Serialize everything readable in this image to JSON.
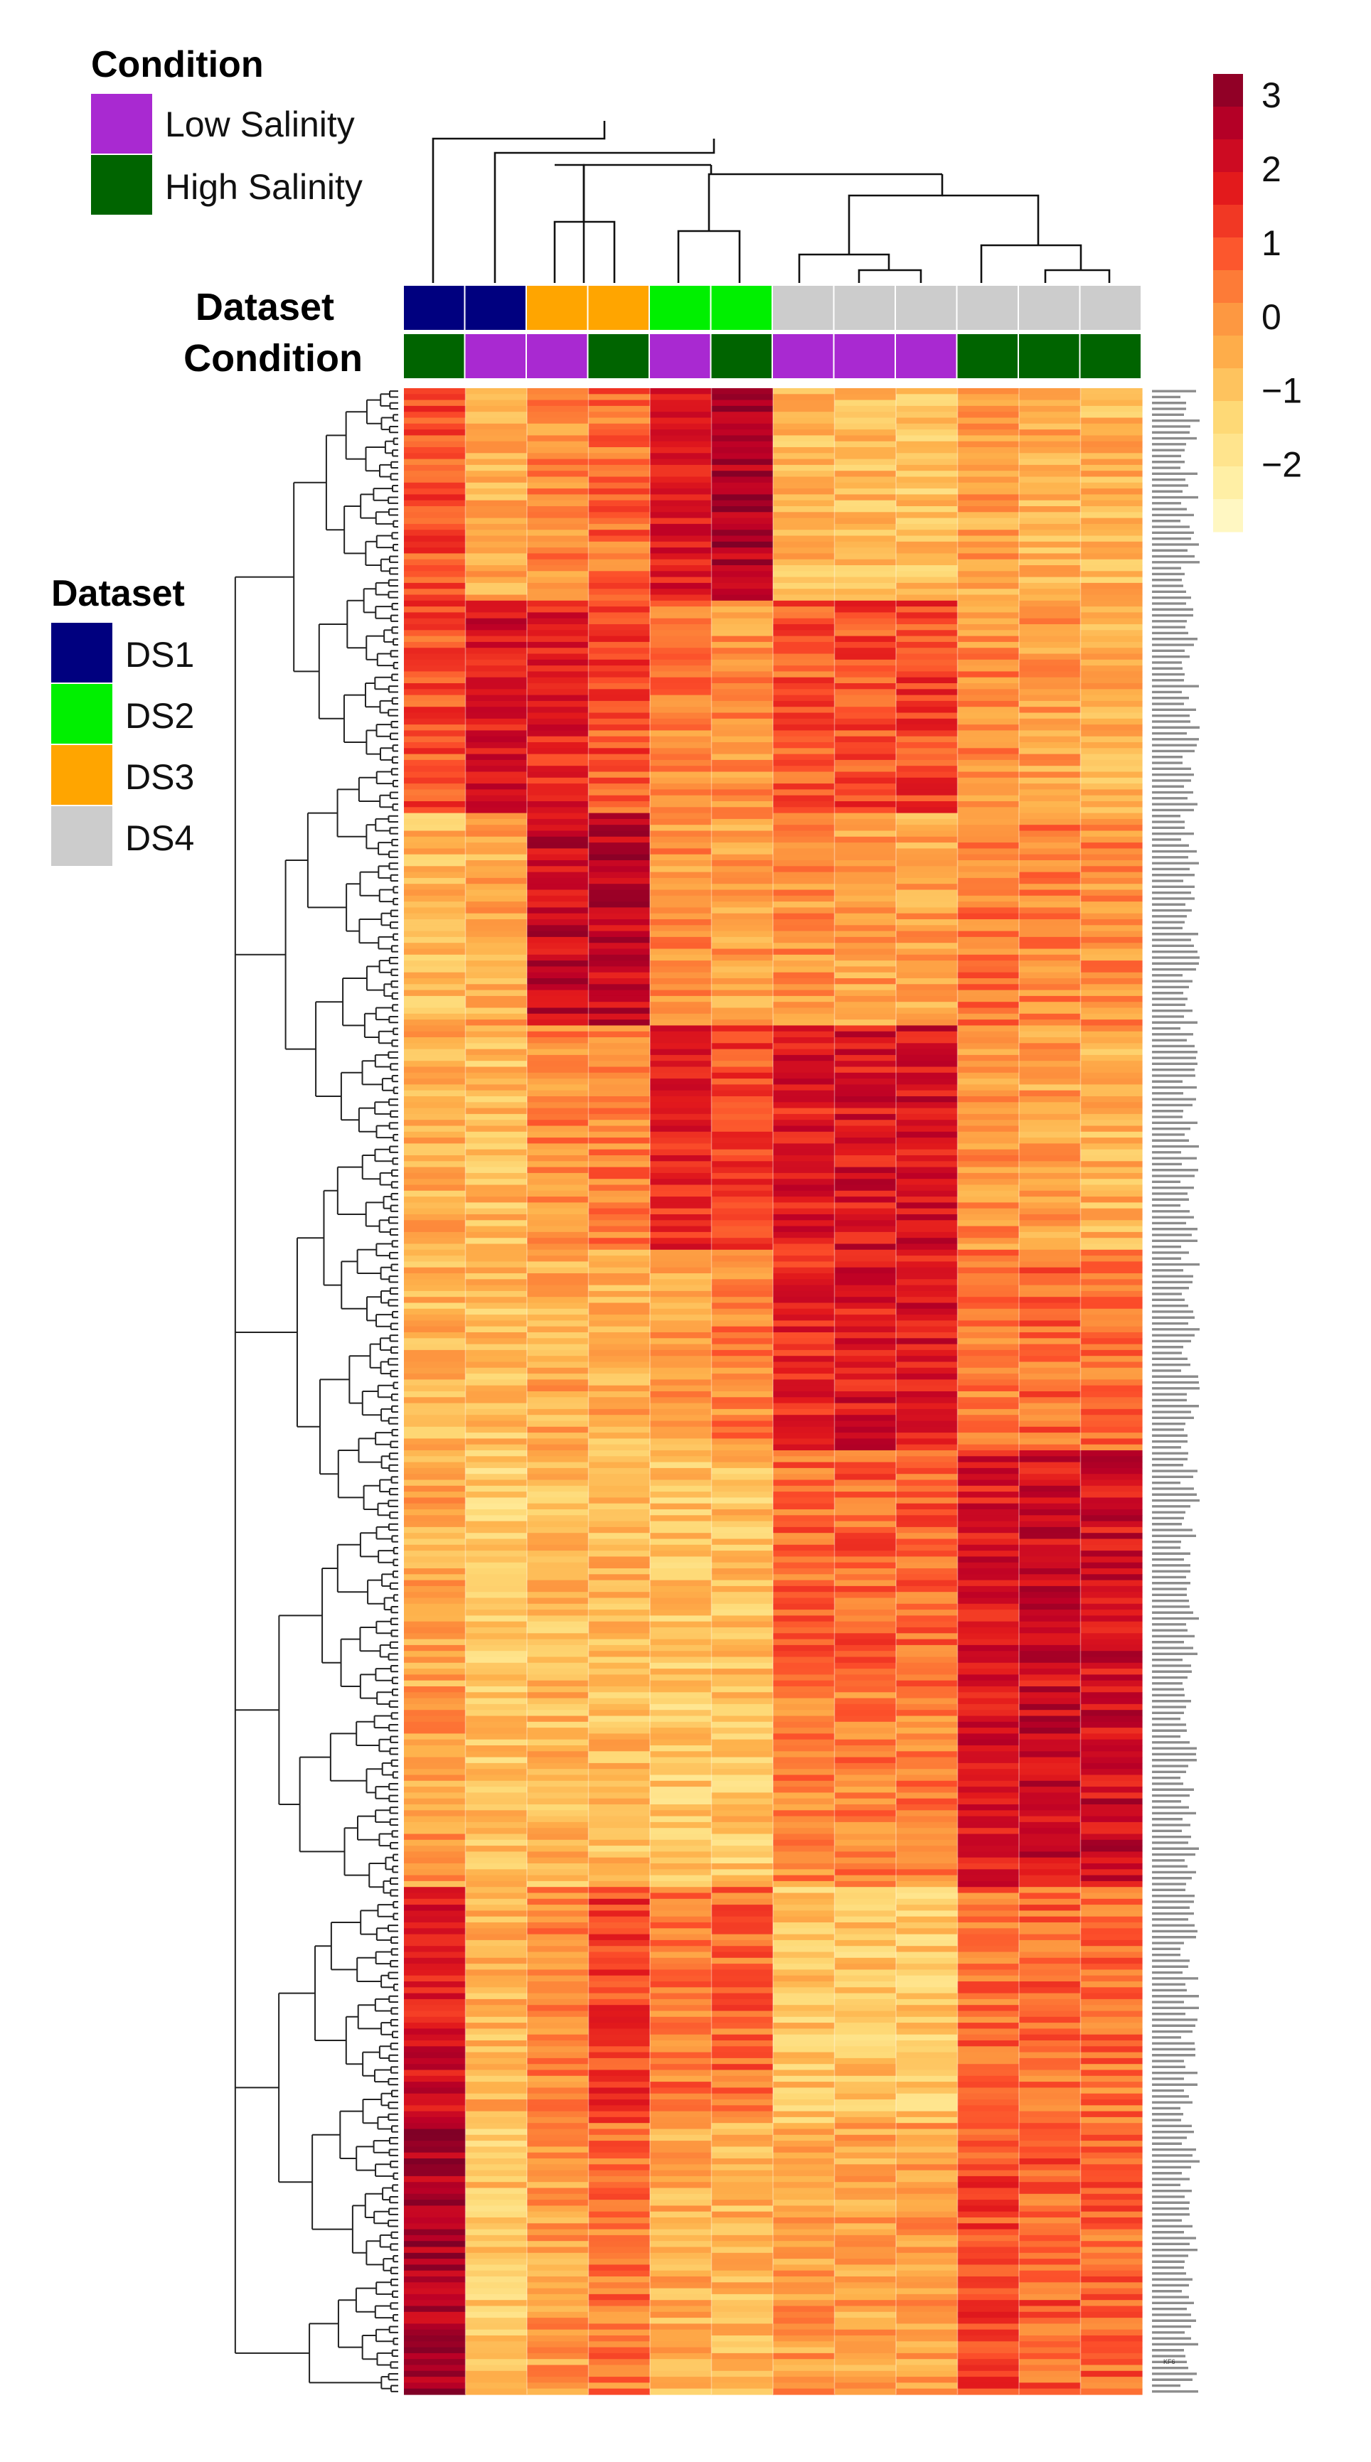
{
  "chart_data": {
    "type": "heatmap",
    "title": "",
    "legend_condition": {
      "title": "Condition",
      "entries": [
        {
          "label": "Low Salinity",
          "color": "#a929d1"
        },
        {
          "label": "High Salinity",
          "color": "#006400"
        }
      ]
    },
    "legend_dataset": {
      "title": "Dataset",
      "entries": [
        {
          "label": "DS1",
          "color": "#00007f"
        },
        {
          "label": "DS2",
          "color": "#00f000"
        },
        {
          "label": "DS3",
          "color": "#ffa500"
        },
        {
          "label": "DS4",
          "color": "#cccccc"
        }
      ]
    },
    "annotation_tracks": [
      {
        "label": "Dataset",
        "values": [
          "DS1",
          "DS1",
          "DS3",
          "DS3",
          "DS2",
          "DS2",
          "DS4",
          "DS4",
          "DS4",
          "DS4",
          "DS4",
          "DS4"
        ]
      },
      {
        "label": "Condition",
        "values": [
          "High Salinity",
          "Low Salinity",
          "Low Salinity",
          "High Salinity",
          "Low Salinity",
          "High Salinity",
          "Low Salinity",
          "Low Salinity",
          "Low Salinity",
          "High Salinity",
          "High Salinity",
          "High Salinity"
        ]
      }
    ],
    "color_scale": {
      "ticks": [
        "3",
        "2",
        "1",
        "0",
        "−1",
        "−2"
      ],
      "tick_values": [
        3,
        2,
        1,
        0,
        -1,
        -2
      ],
      "range": [
        -2.9,
        3.3
      ],
      "colors": [
        "#fffbd1",
        "#ffed9e",
        "#fed976",
        "#feb24c",
        "#fd8d3c",
        "#fc4e2a",
        "#e31a1c",
        "#bd0026",
        "#800026"
      ]
    },
    "column_count": 12,
    "gene_count": 340,
    "visible_gene_label": "KF6",
    "row_blocks": [
      {
        "rows": 36,
        "values": [
          0.9,
          -0.4,
          0.1,
          0.6,
          2.0,
          2.6,
          -0.6,
          -0.8,
          -0.9,
          -0.3,
          -0.5,
          -0.6
        ]
      },
      {
        "rows": 36,
        "values": [
          1.0,
          2.0,
          1.7,
          1.0,
          0.3,
          0.0,
          0.9,
          1.1,
          1.2,
          0.1,
          -0.2,
          -0.5
        ]
      },
      {
        "rows": 36,
        "values": [
          -0.7,
          -0.4,
          2.3,
          2.4,
          0.0,
          -0.2,
          0.0,
          -0.2,
          -0.3,
          0.4,
          0.2,
          0.1
        ]
      },
      {
        "rows": 38,
        "values": [
          -0.5,
          -0.7,
          0.1,
          0.3,
          1.6,
          1.1,
          1.8,
          2.0,
          2.0,
          0.0,
          -0.3,
          -0.5
        ]
      },
      {
        "rows": 34,
        "values": [
          -0.6,
          -0.8,
          -0.4,
          -0.5,
          -0.2,
          0.2,
          1.7,
          1.9,
          1.9,
          0.4,
          0.6,
          0.5
        ]
      },
      {
        "rows": 40,
        "values": [
          -0.4,
          -1.2,
          -0.8,
          -0.7,
          -1.0,
          -0.9,
          0.6,
          0.7,
          0.7,
          1.9,
          2.1,
          2.1
        ]
      },
      {
        "rows": 34,
        "values": [
          -0.2,
          -1.0,
          -0.7,
          -0.8,
          -1.1,
          -1.0,
          0.2,
          0.3,
          0.3,
          1.9,
          2.2,
          2.2
        ]
      },
      {
        "rows": 40,
        "values": [
          2.0,
          -0.6,
          0.1,
          1.2,
          0.4,
          0.6,
          -1.0,
          -1.0,
          -1.1,
          0.6,
          0.6,
          0.5
        ]
      },
      {
        "rows": 46,
        "values": [
          2.8,
          -1.0,
          -0.2,
          0.4,
          -0.5,
          -0.6,
          -0.2,
          -0.3,
          -0.2,
          1.1,
          0.8,
          0.7
        ]
      }
    ]
  }
}
